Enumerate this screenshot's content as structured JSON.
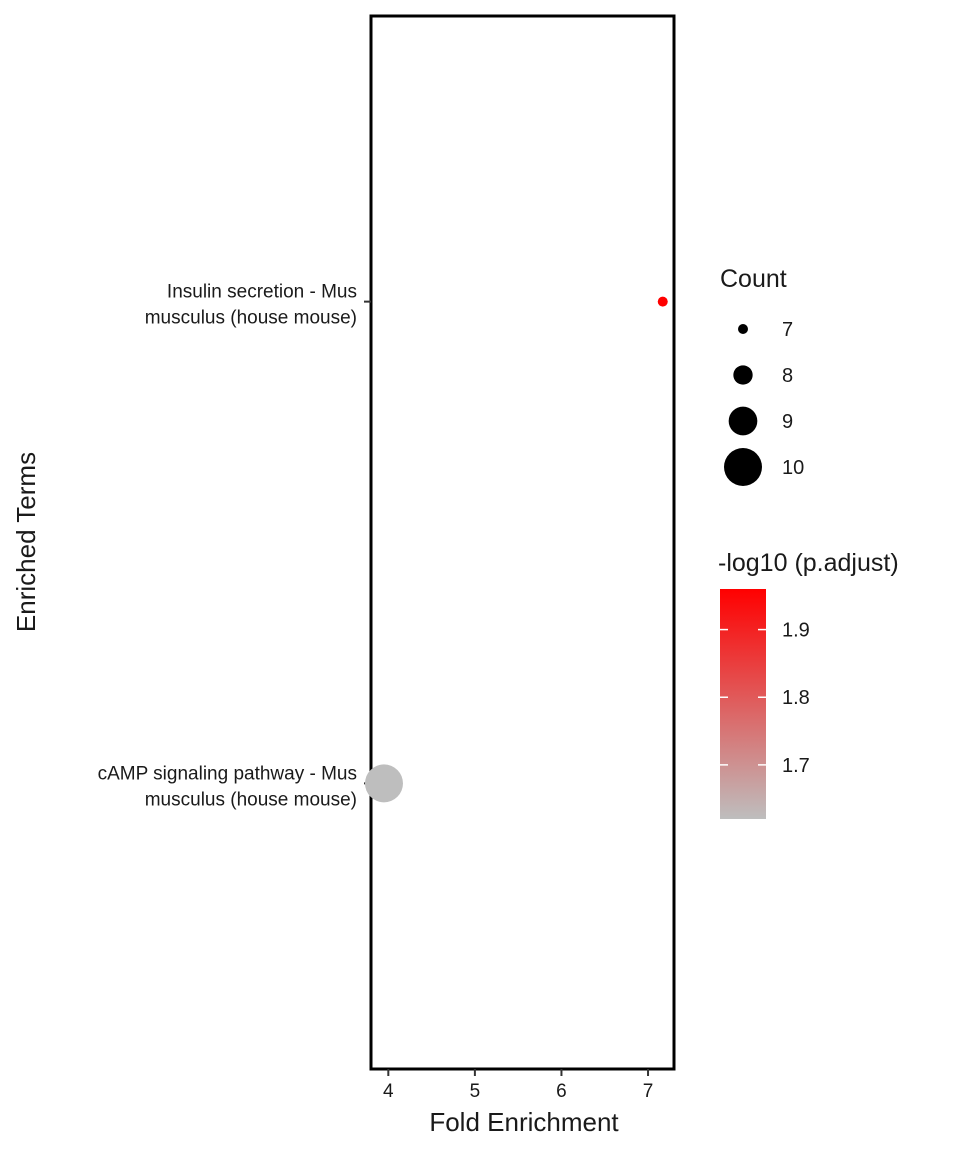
{
  "chart_data": {
    "type": "scatter",
    "xlabel": "Fold Enrichment",
    "ylabel": "Enriched Terms",
    "xlim": [
      3.8,
      7.3
    ],
    "x_ticks": [
      "4",
      "5",
      "6",
      "7"
    ],
    "categories": [
      [
        "cAMP signaling pathway - Mus",
        "musculus (house mouse)"
      ],
      [
        "Insulin secretion - Mus",
        "musculus (house mouse)"
      ]
    ],
    "points": [
      {
        "term_index": 1,
        "fold_enrichment": 7.17,
        "count": 7,
        "neg_log10_padj": 1.96,
        "color": "#ff0000"
      },
      {
        "term_index": 0,
        "fold_enrichment": 3.95,
        "count": 10,
        "neg_log10_padj": 1.62,
        "color": "#bebebe"
      }
    ],
    "legend_size": {
      "title": "Count",
      "entries": [
        "7",
        "8",
        "9",
        "10"
      ],
      "values": [
        7,
        8,
        9,
        10
      ]
    },
    "legend_color": {
      "title": "-log10 (p.adjust)",
      "tick_labels": [
        "1.9",
        "1.8",
        "1.7"
      ],
      "tick_values": [
        1.9,
        1.8,
        1.7
      ],
      "range": [
        1.62,
        1.96
      ],
      "low_color": "#bebebe",
      "high_color": "#ff0000"
    }
  }
}
